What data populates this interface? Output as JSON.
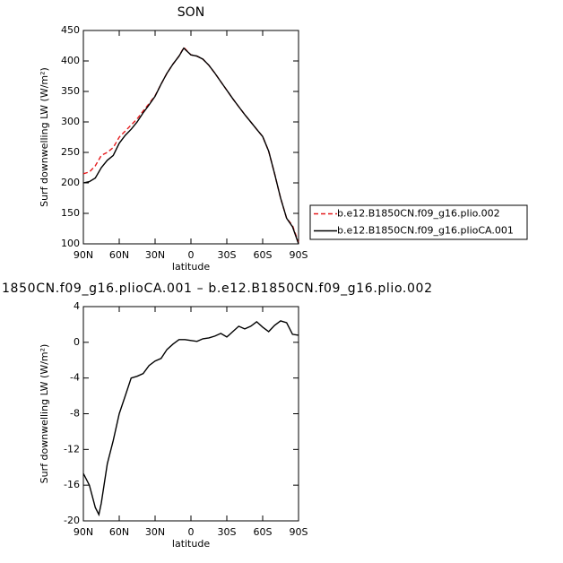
{
  "chart_data": [
    {
      "type": "line",
      "title": "SON",
      "xlabel": "latitude",
      "ylabel": "Surf downwelling LW (W/m²)",
      "x": [
        90,
        85,
        80,
        75,
        70,
        65,
        60,
        55,
        50,
        45,
        40,
        35,
        30,
        25,
        20,
        15,
        10,
        6,
        0,
        -5,
        -10,
        -15,
        -20,
        -25,
        -30,
        -35,
        -40,
        -45,
        -50,
        -55,
        -60,
        -65,
        -70,
        -75,
        -80,
        -85,
        -90
      ],
      "series": [
        {
          "name": "b.e12.B1850CN.f09_g16.plio.002",
          "color": "#e41a1c",
          "dash": true,
          "values": [
            215,
            218,
            228,
            245,
            250,
            258,
            275,
            285,
            295,
            305,
            318,
            330,
            343,
            362,
            380,
            395,
            408,
            422,
            410,
            408,
            403,
            393,
            380,
            366,
            352,
            338,
            325,
            312,
            300,
            288,
            276,
            252,
            215,
            175,
            142,
            130,
            102
          ]
        },
        {
          "name": "b.e12.B1850CN.f09_g16.plioCA.001",
          "color": "#000000",
          "dash": false,
          "values": [
            200,
            202,
            208,
            225,
            237,
            245,
            265,
            278,
            288,
            300,
            315,
            328,
            342,
            362,
            380,
            395,
            408,
            421,
            410,
            408,
            403,
            393,
            380,
            366,
            352,
            338,
            325,
            312,
            300,
            288,
            276,
            252,
            215,
            175,
            142,
            128,
            100
          ]
        }
      ],
      "xlim": [
        90,
        -90
      ],
      "xticks": [
        {
          "value": 90,
          "label": "90N"
        },
        {
          "value": 60,
          "label": "60N"
        },
        {
          "value": 30,
          "label": "30N"
        },
        0,
        {
          "value": -30,
          "label": "30S"
        },
        {
          "value": -60,
          "label": "60S"
        },
        {
          "value": -90,
          "label": "90S"
        }
      ],
      "ylim": [
        100,
        450
      ],
      "yticks": [
        100,
        150,
        200,
        250,
        300,
        350,
        400,
        450
      ],
      "legend": "right"
    },
    {
      "type": "line",
      "title": "1850CN.f09_g16.plioCA.001 – b.e12.B1850CN.f09_g16.plio.002",
      "xlabel": "latitude",
      "ylabel": "Surf downwelling LW (W/m²)",
      "x": [
        90,
        85,
        80,
        77,
        75,
        70,
        65,
        60,
        55,
        50,
        45,
        40,
        35,
        30,
        25,
        20,
        15,
        10,
        5,
        0,
        -5,
        -10,
        -15,
        -20,
        -25,
        -30,
        -35,
        -40,
        -45,
        -50,
        -55,
        -60,
        -65,
        -70,
        -75,
        -80,
        -85,
        -90
      ],
      "series": [
        {
          "color": "#000000",
          "dash": false,
          "values": [
            -14.7,
            -16,
            -18.5,
            -19.3,
            -18,
            -13.6,
            -11,
            -8,
            -6,
            -4,
            -3.8,
            -3.5,
            -2.6,
            -2.1,
            -1.8,
            -0.8,
            -0.2,
            0.3,
            0.3,
            0.2,
            0.1,
            0.4,
            0.5,
            0.7,
            1,
            0.6,
            1.2,
            1.8,
            1.5,
            1.8,
            2.3,
            1.7,
            1.2,
            1.9,
            2.4,
            2.2,
            0.9,
            0.8
          ]
        }
      ],
      "xlim": [
        90,
        -90
      ],
      "xticks": [
        {
          "value": 90,
          "label": "90N"
        },
        {
          "value": 60,
          "label": "60N"
        },
        {
          "value": 30,
          "label": "30N"
        },
        0,
        {
          "value": -30,
          "label": "30S"
        },
        {
          "value": -60,
          "label": "60S"
        },
        {
          "value": -90,
          "label": "90S"
        }
      ],
      "ylim": [
        -20,
        4
      ],
      "yticks": [
        -20,
        -16,
        -12,
        -8,
        -4,
        0,
        4
      ]
    }
  ]
}
